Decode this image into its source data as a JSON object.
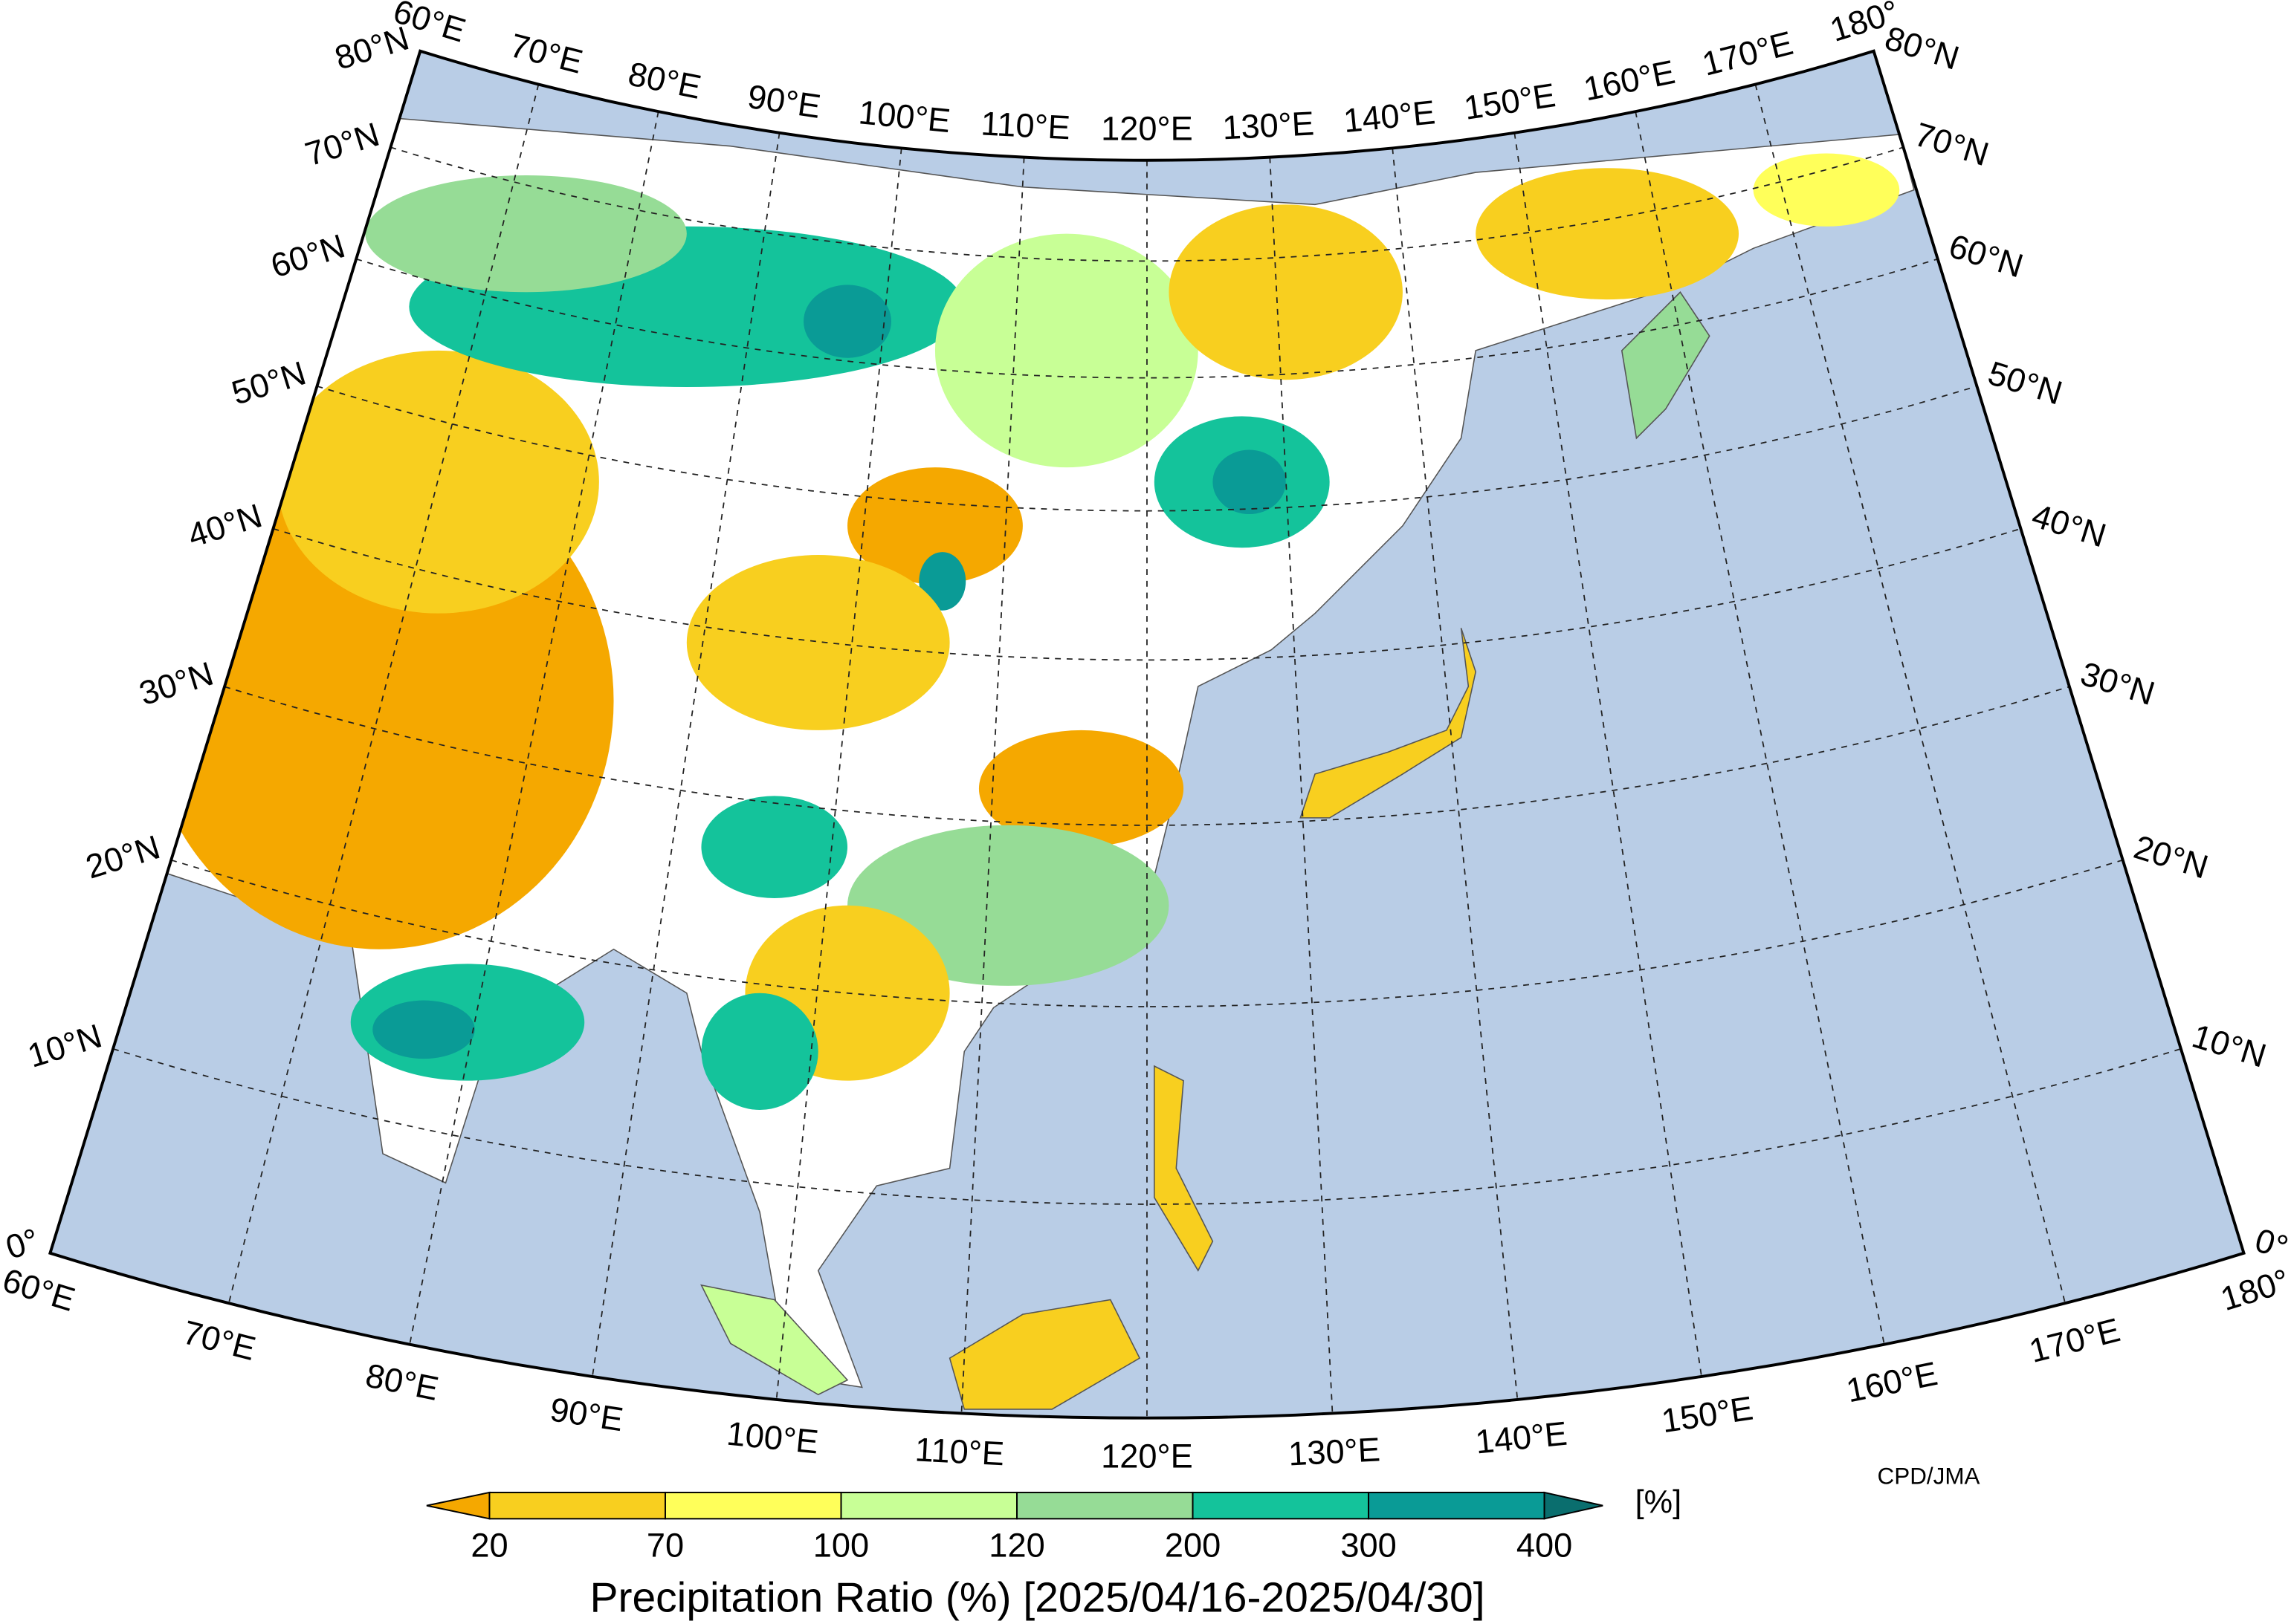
{
  "map": {
    "title": "Precipitation Ratio (%) [2025/04/16-2025/04/30]",
    "credit": "CPD/JMA",
    "latitudes": [
      {
        "value": 0,
        "label": "0°"
      },
      {
        "value": 10,
        "label": "10°N"
      },
      {
        "value": 20,
        "label": "20°N"
      },
      {
        "value": 30,
        "label": "30°N"
      },
      {
        "value": 40,
        "label": "40°N"
      },
      {
        "value": 50,
        "label": "50°N"
      },
      {
        "value": 60,
        "label": "60°N"
      },
      {
        "value": 70,
        "label": "70°N"
      },
      {
        "value": 80,
        "label": "80°N"
      }
    ],
    "longitudes": [
      {
        "value": 60,
        "label": "60°E"
      },
      {
        "value": 70,
        "label": "70°E"
      },
      {
        "value": 80,
        "label": "80°E"
      },
      {
        "value": 90,
        "label": "90°E"
      },
      {
        "value": 100,
        "label": "100°E"
      },
      {
        "value": 110,
        "label": "110°E"
      },
      {
        "value": 120,
        "label": "120°E"
      },
      {
        "value": 130,
        "label": "130°E"
      },
      {
        "value": 140,
        "label": "140°E"
      },
      {
        "value": 150,
        "label": "150°E"
      },
      {
        "value": 160,
        "label": "160°E"
      },
      {
        "value": 170,
        "label": "170°E"
      },
      {
        "value": 180,
        "label": "180°"
      }
    ],
    "colorbar": {
      "unit": "[%]",
      "ticks": [
        20,
        70,
        100,
        120,
        200,
        300,
        400
      ],
      "colors": [
        "#f5a800",
        "#f8cf1f",
        "#ffff5a",
        "#c8ff96",
        "#96dc96",
        "#14c39b",
        "#0a9b96",
        "#0a6e6e"
      ]
    }
  }
}
